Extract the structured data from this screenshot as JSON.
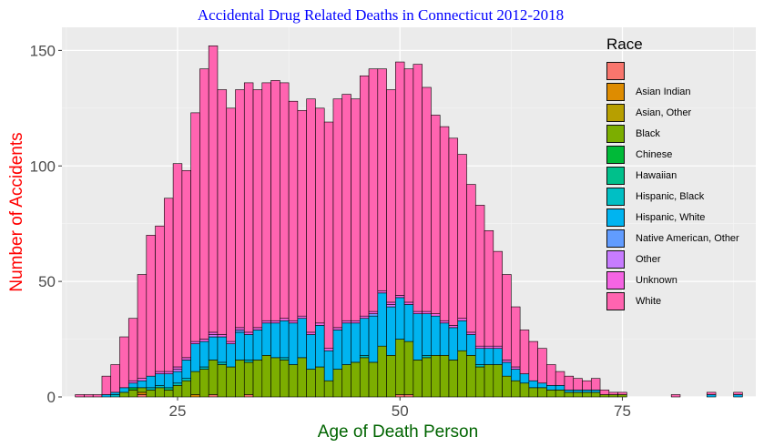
{
  "chart_data": {
    "type": "bar",
    "subtype": "stacked-histogram",
    "title": "Accidental Drug Related Deaths in Connecticut 2012-2018",
    "xlabel": "Age of Death Person",
    "ylabel": "Number of Accidents",
    "xlim": [
      12,
      90
    ],
    "ylim": [
      0,
      160
    ],
    "xticks": [
      25,
      50,
      75
    ],
    "yticks": [
      0,
      50,
      100,
      150
    ],
    "grid": true,
    "legend": {
      "title": "Race",
      "placement": "right"
    },
    "colors": {
      "title": "#0000FF",
      "ylabel": "#FF0000",
      "xlabel": "#006400",
      "panel": "#EBEBEB",
      "grid": "#FFFFFF",
      "bar_outline": "#000000"
    },
    "ages": [
      14,
      15,
      16,
      17,
      18,
      19,
      20,
      21,
      22,
      23,
      24,
      25,
      26,
      27,
      28,
      29,
      30,
      31,
      32,
      33,
      34,
      35,
      36,
      37,
      38,
      39,
      40,
      41,
      42,
      43,
      44,
      45,
      46,
      47,
      48,
      49,
      50,
      51,
      52,
      53,
      54,
      55,
      56,
      57,
      58,
      59,
      60,
      61,
      62,
      63,
      64,
      65,
      66,
      67,
      68,
      69,
      70,
      71,
      72,
      73,
      74,
      75,
      81,
      85,
      88
    ],
    "series": [
      {
        "name": "",
        "color": "#F8766D",
        "values": [
          0,
          0,
          0,
          0,
          0,
          0,
          0,
          1,
          0,
          0,
          0,
          0,
          0,
          0,
          0,
          1,
          0,
          0,
          0,
          1,
          0,
          0,
          0,
          0,
          0,
          0,
          0,
          0,
          0,
          0,
          0,
          0,
          0,
          0,
          0,
          0,
          1,
          1,
          0,
          0,
          0,
          0,
          0,
          0,
          0,
          0,
          0,
          0,
          0,
          0,
          0,
          0,
          0,
          0,
          0,
          0,
          0,
          0,
          0,
          0,
          0,
          0,
          0,
          0,
          0
        ]
      },
      {
        "name": "Asian Indian",
        "color": "#DE8C00",
        "values": [
          0,
          0,
          0,
          0,
          0,
          0,
          0,
          1,
          0,
          0,
          0,
          0,
          0,
          1,
          0,
          0,
          0,
          0,
          0,
          0,
          0,
          0,
          0,
          0,
          0,
          0,
          0,
          0,
          0,
          0,
          0,
          0,
          0,
          0,
          0,
          0,
          0,
          0,
          0,
          0,
          0,
          0,
          0,
          0,
          0,
          0,
          0,
          0,
          0,
          0,
          0,
          0,
          0,
          0,
          0,
          0,
          0,
          0,
          0,
          0,
          0,
          0,
          0,
          0,
          0
        ]
      },
      {
        "name": "Asian, Other",
        "color": "#B79F00",
        "values": [
          0,
          0,
          0,
          0,
          0,
          0,
          0,
          0,
          0,
          0,
          0,
          0,
          0,
          0,
          0,
          0,
          0,
          0,
          0,
          0,
          0,
          0,
          0,
          0,
          0,
          0,
          0,
          0,
          0,
          0,
          0,
          0,
          0,
          0,
          0,
          0,
          0,
          0,
          0,
          0,
          0,
          0,
          0,
          0,
          0,
          0,
          0,
          0,
          0,
          0,
          0,
          0,
          0,
          0,
          0,
          0,
          0,
          0,
          0,
          0,
          0,
          0,
          0,
          0,
          0
        ]
      },
      {
        "name": "Black",
        "color": "#7CAE00",
        "values": [
          0,
          0,
          0,
          0,
          0,
          2,
          3,
          2,
          3,
          4,
          3,
          5,
          7,
          10,
          12,
          15,
          14,
          13,
          16,
          14,
          16,
          18,
          17,
          16,
          14,
          17,
          12,
          13,
          7,
          12,
          14,
          15,
          17,
          15,
          22,
          18,
          24,
          23,
          16,
          17,
          18,
          18,
          16,
          20,
          18,
          13,
          14,
          14,
          9,
          7,
          6,
          4,
          4,
          3,
          3,
          2,
          2,
          2,
          2,
          1,
          1,
          1,
          0,
          0,
          0
        ]
      },
      {
        "name": "Chinese",
        "color": "#00BA38",
        "values": [
          0,
          0,
          0,
          0,
          0,
          0,
          1,
          0,
          0,
          0,
          0,
          0,
          0,
          0,
          0,
          0,
          0,
          0,
          0,
          0,
          0,
          0,
          0,
          0,
          0,
          0,
          0,
          0,
          0,
          0,
          0,
          0,
          0,
          0,
          0,
          0,
          0,
          0,
          0,
          0,
          0,
          0,
          0,
          0,
          0,
          0,
          0,
          0,
          0,
          0,
          0,
          0,
          0,
          0,
          0,
          0,
          0,
          0,
          0,
          0,
          0,
          0,
          0,
          0,
          0
        ]
      },
      {
        "name": "Hawaiian",
        "color": "#00C08B",
        "values": [
          0,
          0,
          0,
          0,
          0,
          0,
          0,
          0,
          0,
          0,
          1,
          0,
          0,
          0,
          0,
          0,
          0,
          0,
          0,
          0,
          0,
          0,
          0,
          0,
          0,
          0,
          0,
          0,
          0,
          0,
          0,
          0,
          0,
          0,
          0,
          0,
          0,
          0,
          0,
          0,
          0,
          0,
          0,
          0,
          0,
          0,
          0,
          0,
          0,
          0,
          0,
          0,
          0,
          0,
          0,
          0,
          0,
          0,
          0,
          0,
          0,
          0,
          0,
          0,
          0
        ]
      },
      {
        "name": "Hispanic, Black",
        "color": "#00BFC4",
        "values": [
          0,
          0,
          0,
          0,
          1,
          0,
          0,
          0,
          1,
          1,
          0,
          1,
          1,
          0,
          1,
          0,
          1,
          0,
          0,
          1,
          0,
          0,
          0,
          1,
          0,
          0,
          0,
          0,
          0,
          0,
          0,
          0,
          1,
          0,
          0,
          0,
          0,
          0,
          0,
          1,
          0,
          0,
          0,
          0,
          0,
          1,
          0,
          0,
          0,
          0,
          0,
          0,
          0,
          0,
          0,
          0,
          0,
          0,
          0,
          0,
          0,
          0,
          0,
          0,
          0
        ]
      },
      {
        "name": "Hispanic, White",
        "color": "#00B4F0",
        "values": [
          0,
          0,
          0,
          1,
          1,
          2,
          2,
          3,
          5,
          5,
          6,
          5,
          8,
          12,
          11,
          10,
          11,
          10,
          12,
          11,
          13,
          14,
          15,
          16,
          18,
          17,
          15,
          18,
          13,
          17,
          18,
          17,
          16,
          20,
          23,
          21,
          18,
          16,
          20,
          18,
          17,
          14,
          14,
          13,
          9,
          7,
          7,
          7,
          6,
          5,
          4,
          3,
          2,
          2,
          2,
          1,
          1,
          1,
          1,
          0,
          0,
          0,
          0,
          1,
          1
        ]
      },
      {
        "name": "Native American, Other",
        "color": "#619CFF",
        "values": [
          0,
          0,
          0,
          0,
          0,
          0,
          0,
          0,
          0,
          0,
          0,
          0,
          0,
          0,
          0,
          0,
          0,
          0,
          1,
          0,
          0,
          0,
          0,
          0,
          0,
          0,
          0,
          0,
          0,
          0,
          0,
          0,
          0,
          1,
          0,
          0,
          0,
          0,
          0,
          0,
          0,
          0,
          0,
          0,
          0,
          0,
          0,
          0,
          0,
          0,
          0,
          0,
          0,
          0,
          0,
          0,
          0,
          0,
          0,
          0,
          0,
          0,
          0,
          0,
          0
        ]
      },
      {
        "name": "Other",
        "color": "#C77CFF",
        "values": [
          0,
          0,
          0,
          0,
          0,
          0,
          0,
          0,
          0,
          0,
          0,
          1,
          0,
          0,
          0,
          1,
          0,
          0,
          0,
          0,
          0,
          0,
          0,
          0,
          0,
          0,
          0,
          0,
          0,
          0,
          0,
          0,
          0,
          0,
          0,
          1,
          0,
          0,
          0,
          0,
          0,
          0,
          0,
          0,
          0,
          0,
          0,
          0,
          0,
          0,
          0,
          0,
          0,
          0,
          0,
          0,
          0,
          0,
          0,
          0,
          0,
          0,
          0,
          0,
          0
        ]
      },
      {
        "name": "Unknown",
        "color": "#F564E3",
        "values": [
          0,
          0,
          0,
          0,
          0,
          0,
          1,
          1,
          0,
          1,
          1,
          1,
          1,
          1,
          1,
          1,
          1,
          1,
          1,
          1,
          1,
          1,
          1,
          1,
          1,
          1,
          1,
          1,
          1,
          1,
          1,
          1,
          1,
          1,
          1,
          1,
          1,
          1,
          1,
          1,
          1,
          1,
          1,
          1,
          1,
          1,
          1,
          1,
          1,
          1,
          0,
          0,
          0,
          0,
          0,
          0,
          0,
          0,
          0,
          0,
          0,
          0,
          0,
          0,
          0
        ]
      },
      {
        "name": "White",
        "color": "#FF64B0",
        "values": [
          1,
          1,
          1,
          8,
          12,
          22,
          27,
          45,
          61,
          63,
          75,
          88,
          81,
          99,
          117,
          124,
          106,
          101,
          103,
          108,
          103,
          103,
          104,
          102,
          95,
          89,
          101,
          93,
          98,
          99,
          98,
          96,
          104,
          105,
          96,
          92,
          101,
          101,
          107,
          97,
          86,
          84,
          81,
          71,
          64,
          61,
          50,
          41,
          37,
          26,
          19,
          17,
          15,
          9,
          6,
          6,
          5,
          4,
          5,
          2,
          1,
          1,
          1,
          1,
          1
        ]
      }
    ]
  }
}
